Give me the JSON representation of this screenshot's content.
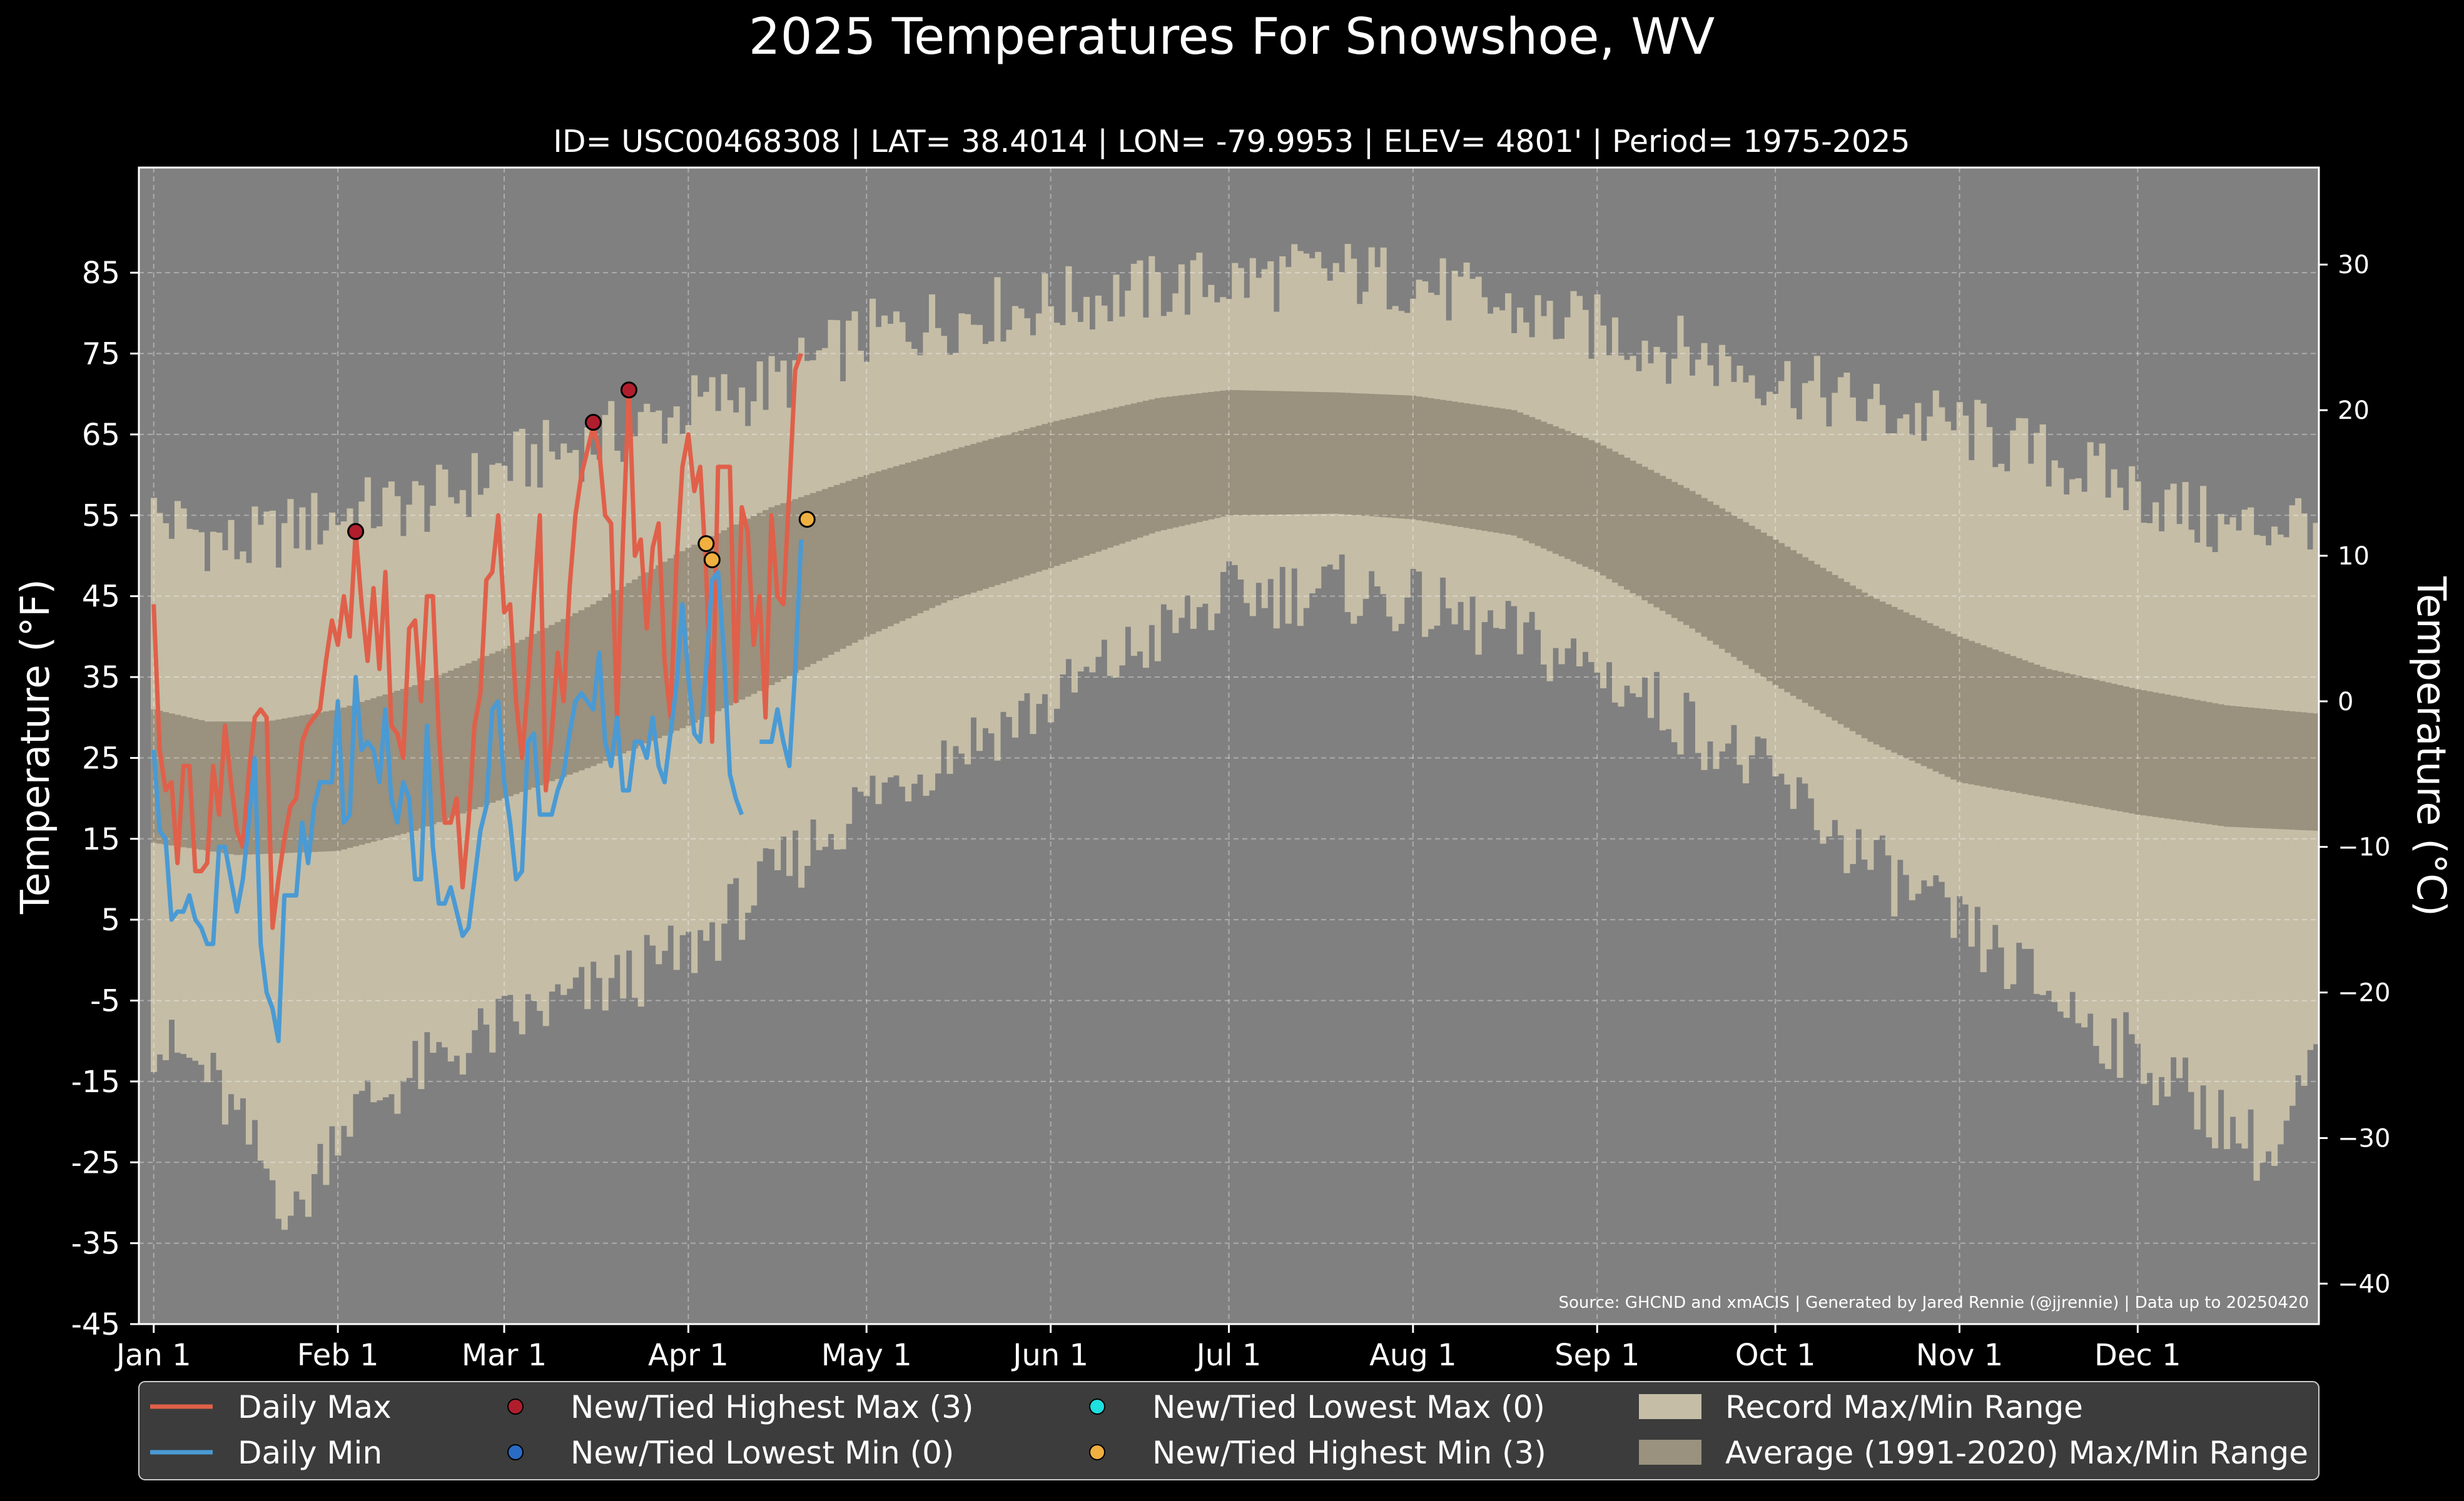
{
  "title": "2025 Temperatures For Snowshoe, WV",
  "subtitle": "ID= USC00468308 | LAT= 38.4014 | LON= -79.9953 | ELEV= 4801' | Period= 1975-2025",
  "source_note": "Source: GHCND and xmACIS | Generated by Jared Rennie (@jjrennie) | Data up to 20250420",
  "colors": {
    "background": "#000000",
    "plot_bg": "#808080",
    "record_range": "#c5bda6",
    "average_range": "#9a917e",
    "daily_max": "#e0604a",
    "daily_min": "#4a9ad4",
    "highest_max": "#b01e2d",
    "lowest_min": "#2a6bc4",
    "lowest_max": "#1ee0e0",
    "highest_min": "#f0b040",
    "legend_bg": "#3c3c3c"
  },
  "legend": [
    {
      "label": "Daily Max",
      "kind": "line",
      "color_key": "daily_max"
    },
    {
      "label": "Daily Min",
      "kind": "line",
      "color_key": "daily_min"
    },
    {
      "label": "New/Tied Highest Max (3)",
      "kind": "dot",
      "color_key": "highest_max"
    },
    {
      "label": "New/Tied Lowest Min (0)",
      "kind": "dot",
      "color_key": "lowest_min"
    },
    {
      "label": "New/Tied Lowest Max (0)",
      "kind": "dot",
      "color_key": "lowest_max"
    },
    {
      "label": "New/Tied Highest Min (3)",
      "kind": "dot",
      "color_key": "highest_min"
    },
    {
      "label": "Record Max/Min Range",
      "kind": "patch",
      "color_key": "record_range"
    },
    {
      "label": "Average (1991-2020) Max/Min Range",
      "kind": "patch",
      "color_key": "average_range"
    }
  ],
  "chart_data": {
    "type": "line",
    "ylabel_left": "Temperature ($^\\circ$F)",
    "ylabel_left_text": "Temperature (°F)",
    "ylabel_right_text": "Temperature (°C)",
    "ylim_f": [
      -45,
      98
    ],
    "xlim_day": [
      -1.5,
      365.5
    ],
    "grid": true,
    "legend_placement": "bottom",
    "x_tick_labels": [
      "Jan 1",
      "Feb 1",
      "Mar 1",
      "Apr 1",
      "May 1",
      "Jun 1",
      "Jul 1",
      "Aug 1",
      "Sep 1",
      "Oct 1",
      "Nov 1",
      "Dec 1"
    ],
    "x_tick_days": [
      1,
      32,
      60,
      91,
      121,
      152,
      182,
      213,
      244,
      274,
      305,
      335
    ],
    "y_ticks_f": [
      -45,
      -35,
      -25,
      -15,
      -5,
      5,
      15,
      25,
      35,
      45,
      55,
      65,
      75,
      85
    ],
    "y_ticks_c": [
      -40,
      -30,
      -20,
      -10,
      0,
      10,
      20,
      30
    ],
    "record_max_anchors": [
      [
        1,
        55
      ],
      [
        15,
        51
      ],
      [
        32,
        55
      ],
      [
        50,
        57
      ],
      [
        60,
        61
      ],
      [
        75,
        64
      ],
      [
        90,
        68
      ],
      [
        105,
        71
      ],
      [
        120,
        77
      ],
      [
        140,
        80
      ],
      [
        160,
        82
      ],
      [
        182,
        84
      ],
      [
        200,
        85
      ],
      [
        213,
        84
      ],
      [
        230,
        80
      ],
      [
        244,
        78
      ],
      [
        260,
        75
      ],
      [
        274,
        72
      ],
      [
        290,
        68
      ],
      [
        305,
        66
      ],
      [
        320,
        62
      ],
      [
        335,
        58
      ],
      [
        350,
        53
      ],
      [
        365,
        55
      ]
    ],
    "record_min_anchors": [
      [
        1,
        -10
      ],
      [
        10,
        -14
      ],
      [
        20,
        -26
      ],
      [
        25,
        -32
      ],
      [
        32,
        -20
      ],
      [
        45,
        -14
      ],
      [
        60,
        -8
      ],
      [
        75,
        -4
      ],
      [
        91,
        1
      ],
      [
        105,
        10
      ],
      [
        121,
        20
      ],
      [
        135,
        26
      ],
      [
        152,
        32
      ],
      [
        170,
        40
      ],
      [
        182,
        45
      ],
      [
        200,
        46
      ],
      [
        213,
        44
      ],
      [
        230,
        40
      ],
      [
        244,
        36
      ],
      [
        260,
        29
      ],
      [
        274,
        22
      ],
      [
        290,
        12
      ],
      [
        305,
        4
      ],
      [
        320,
        -4
      ],
      [
        335,
        -12
      ],
      [
        350,
        -20
      ],
      [
        358,
        -25
      ],
      [
        365,
        -12
      ]
    ],
    "average_max_anchors": [
      [
        1,
        31
      ],
      [
        10,
        29.5
      ],
      [
        20,
        29.5
      ],
      [
        32,
        31
      ],
      [
        45,
        34
      ],
      [
        60,
        38.5
      ],
      [
        75,
        44
      ],
      [
        91,
        51
      ],
      [
        105,
        56
      ],
      [
        121,
        60
      ],
      [
        135,
        63
      ],
      [
        152,
        66.5
      ],
      [
        170,
        69.5
      ],
      [
        182,
        70.5
      ],
      [
        200,
        70.2
      ],
      [
        213,
        69.8
      ],
      [
        230,
        68
      ],
      [
        244,
        64
      ],
      [
        260,
        58
      ],
      [
        274,
        52
      ],
      [
        290,
        45
      ],
      [
        305,
        40
      ],
      [
        320,
        36
      ],
      [
        335,
        33.5
      ],
      [
        350,
        31.5
      ],
      [
        365,
        30.5
      ]
    ],
    "average_min_anchors": [
      [
        1,
        14.5
      ],
      [
        15,
        13
      ],
      [
        32,
        13.5
      ],
      [
        45,
        16
      ],
      [
        60,
        20
      ],
      [
        75,
        24
      ],
      [
        91,
        29
      ],
      [
        105,
        34
      ],
      [
        121,
        40
      ],
      [
        135,
        44.5
      ],
      [
        152,
        48.5
      ],
      [
        170,
        53
      ],
      [
        182,
        55
      ],
      [
        200,
        55.2
      ],
      [
        213,
        54.5
      ],
      [
        230,
        52.5
      ],
      [
        244,
        48
      ],
      [
        260,
        41
      ],
      [
        274,
        34
      ],
      [
        290,
        27
      ],
      [
        305,
        22
      ],
      [
        320,
        20
      ],
      [
        335,
        18
      ],
      [
        350,
        16.5
      ],
      [
        365,
        16
      ]
    ],
    "series": [
      {
        "name": "Daily Max",
        "color_key": "daily_max",
        "x": [
          1,
          2,
          3,
          4,
          5,
          6,
          7,
          8,
          9,
          10,
          11,
          12,
          13,
          14,
          15,
          16,
          17,
          18,
          19,
          20,
          21,
          22,
          23,
          24,
          25,
          26,
          27,
          28,
          29,
          30,
          31,
          32,
          33,
          34,
          35,
          36,
          37,
          38,
          39,
          40,
          41,
          42,
          43,
          44,
          45,
          46,
          47,
          48,
          49,
          50,
          51,
          52,
          53,
          54,
          55,
          56,
          57,
          58,
          59,
          60,
          61,
          62,
          63,
          64,
          65,
          66,
          67,
          68,
          69,
          70,
          71,
          72,
          73,
          74,
          75,
          76,
          77,
          78,
          79,
          80,
          81,
          82,
          83,
          84,
          85,
          86,
          87,
          88,
          89,
          90,
          91,
          92,
          93,
          94,
          95,
          96,
          97,
          98,
          99,
          100,
          101,
          102,
          103,
          104,
          105,
          106,
          107,
          108,
          109,
          110
        ],
        "values": [
          44,
          26,
          21,
          22,
          12,
          24,
          24,
          11,
          11,
          12,
          24,
          18,
          29,
          22,
          16,
          14,
          23,
          30,
          31,
          30,
          4,
          10,
          15,
          19,
          20,
          27,
          29,
          30,
          31,
          37,
          42,
          39,
          45,
          40,
          53,
          44,
          37,
          46,
          36,
          48,
          29,
          28,
          25,
          41,
          42,
          32,
          45,
          45,
          28,
          17,
          17,
          20,
          9,
          17,
          29,
          33,
          47,
          48,
          55,
          43,
          44,
          32,
          25,
          34,
          45,
          55,
          21,
          28,
          38,
          32,
          46,
          55,
          60,
          63,
          66,
          63,
          55,
          54,
          30,
          52,
          71,
          50,
          52,
          41,
          51,
          54,
          37,
          30,
          49,
          61,
          65,
          58,
          61,
          48,
          27,
          61,
          61,
          61,
          32,
          56,
          53,
          39,
          45,
          30,
          55,
          45,
          44,
          58,
          73,
          75
        ]
      },
      {
        "name": "Daily Min",
        "color_key": "daily_min",
        "x": [
          1,
          2,
          3,
          4,
          5,
          6,
          7,
          8,
          9,
          10,
          11,
          12,
          13,
          14,
          15,
          16,
          17,
          18,
          19,
          20,
          21,
          22,
          23,
          24,
          25,
          26,
          27,
          28,
          29,
          30,
          31,
          32,
          33,
          34,
          35,
          36,
          37,
          38,
          39,
          40,
          41,
          42,
          43,
          44,
          45,
          46,
          47,
          48,
          49,
          50,
          51,
          52,
          53,
          54,
          55,
          56,
          57,
          58,
          59,
          60,
          61,
          62,
          63,
          64,
          65,
          66,
          67,
          68,
          69,
          70,
          71,
          72,
          73,
          74,
          75,
          76,
          77,
          78,
          79,
          80,
          81,
          82,
          83,
          84,
          85,
          86,
          87,
          88,
          89,
          90,
          91,
          92,
          93,
          94,
          95,
          96,
          97,
          98,
          99,
          100,
          101,
          102,
          103,
          104,
          105,
          106,
          107,
          108,
          109,
          110
        ],
        "values": [
          26,
          16,
          15,
          5,
          6,
          6,
          8,
          5,
          4,
          2,
          2,
          14,
          14,
          10,
          6,
          10,
          17,
          25,
          2,
          -4,
          -6,
          -10,
          8,
          8,
          8,
          17,
          12,
          19,
          22,
          22,
          22,
          32,
          17,
          18,
          35,
          26,
          27,
          26,
          22,
          31,
          20,
          17,
          22,
          20,
          10,
          10,
          29,
          14,
          7,
          7,
          9,
          6,
          3,
          4,
          10,
          16,
          19,
          31,
          32,
          22,
          17,
          10,
          11,
          27,
          28,
          18,
          18,
          18,
          21,
          23,
          28,
          32,
          33,
          32,
          31,
          38,
          27,
          24,
          30,
          21,
          21,
          27,
          27,
          25,
          30,
          24,
          22,
          28,
          34,
          44,
          35,
          28,
          27,
          36,
          47,
          48,
          38,
          23,
          20,
          18,
          null,
          null,
          27,
          27,
          27,
          31,
          27,
          24,
          36,
          52
        ]
      }
    ],
    "record_markers": [
      {
        "series": "New/Tied Highest Max (3)",
        "color_key": "highest_max",
        "points": [
          [
            35,
            53
          ],
          [
            75,
            66.5
          ],
          [
            81,
            70.5
          ]
        ]
      },
      {
        "series": "New/Tied Highest Min (3)",
        "color_key": "highest_min",
        "points": [
          [
            94,
            51.5
          ],
          [
            95,
            49.5
          ],
          [
            111,
            54.5
          ]
        ]
      }
    ]
  }
}
